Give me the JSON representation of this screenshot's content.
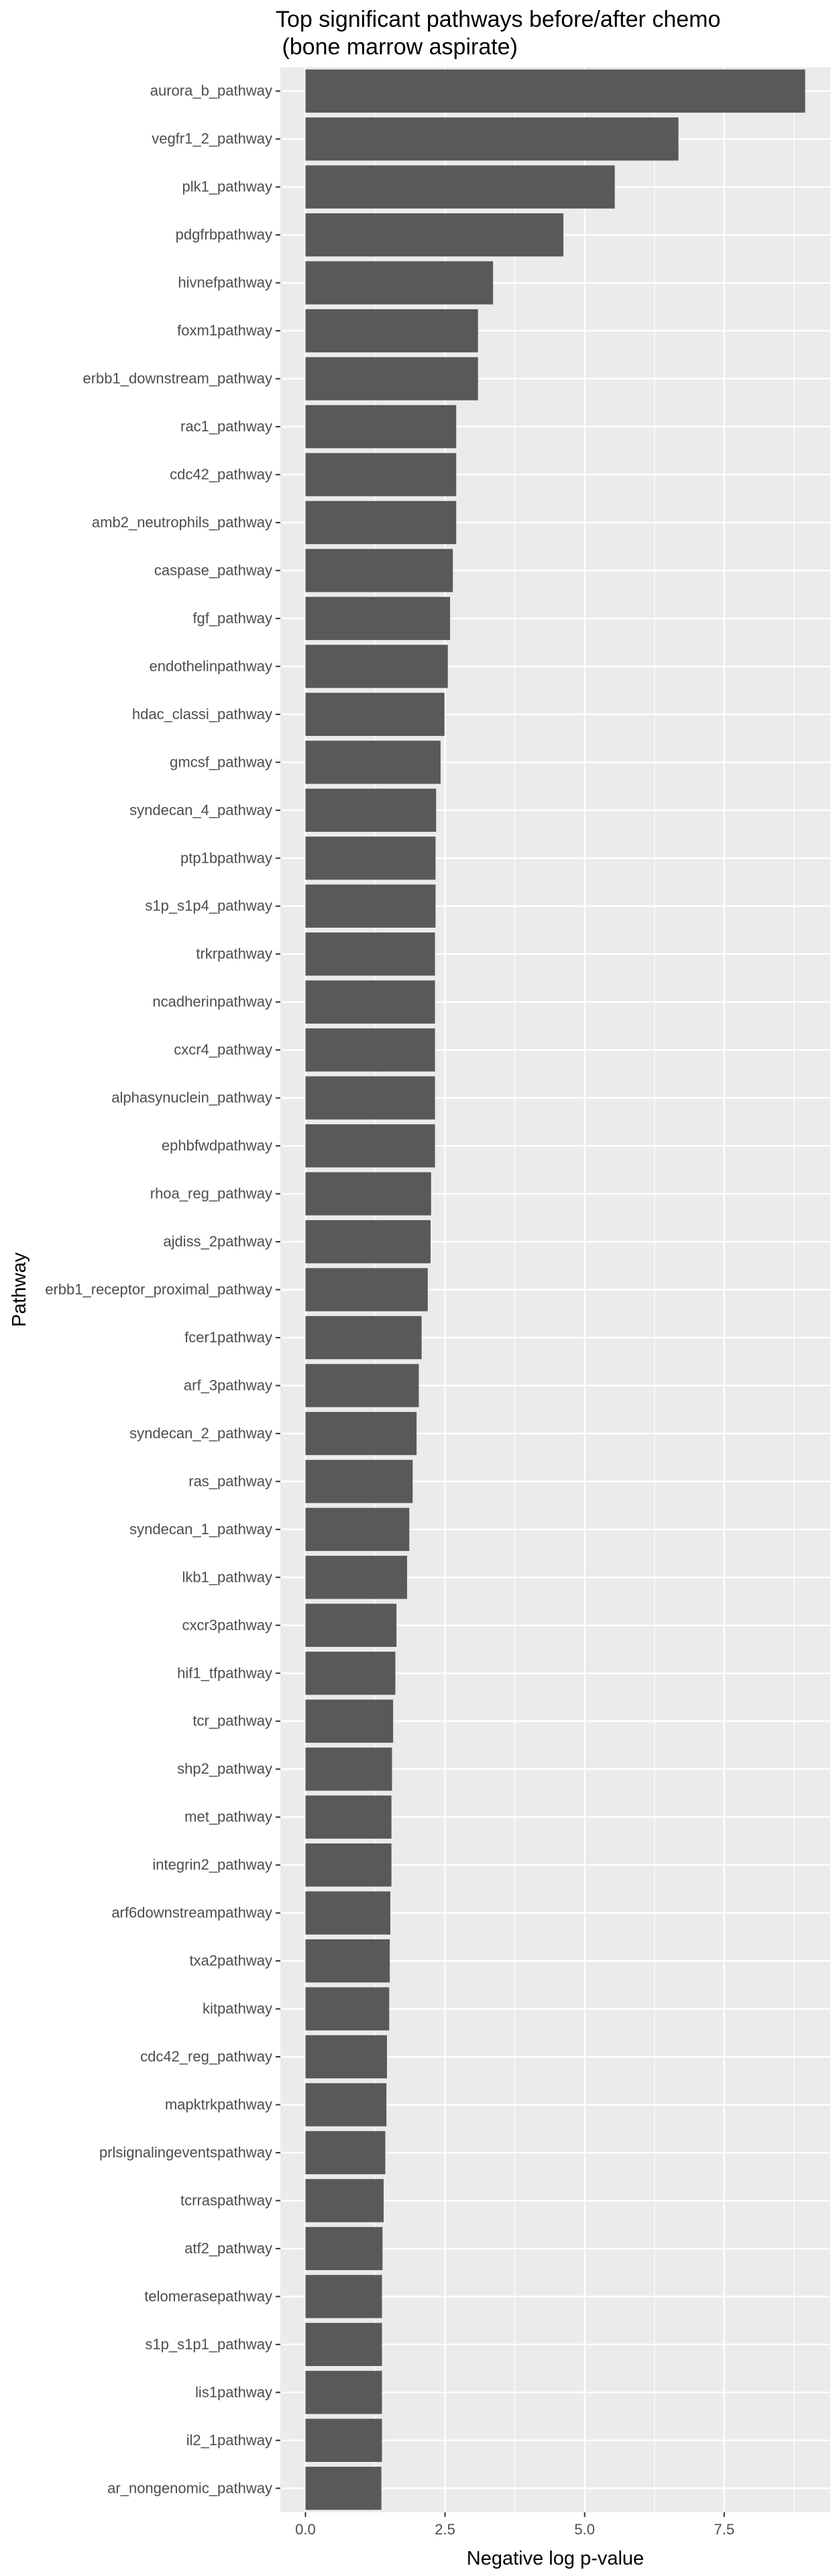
{
  "chart_data": {
    "type": "bar",
    "orientation": "horizontal",
    "title_lines": [
      "Top significant pathways before/after chemo",
      " (bone marrow aspirate)"
    ],
    "xlabel": "Negative log p-value",
    "ylabel": "Pathway",
    "xlim": [
      -0.45,
      9.4
    ],
    "xticks": [
      0,
      2.5,
      5,
      7.5
    ],
    "xtick_labels": [
      "0.0",
      "2.5",
      "5.0",
      "7.5"
    ],
    "grid": true,
    "legend": "none",
    "colors": {
      "bar": "#595959",
      "panel": "#ebebeb",
      "grid": "#ffffff",
      "tick_text": "#4d4d4d"
    },
    "categories": [
      "aurora_b_pathway",
      "vegfr1_2_pathway",
      "plk1_pathway",
      "pdgfrbpathway",
      "hivnefpathway",
      "foxm1pathway",
      "erbb1_downstream_pathway",
      "rac1_pathway",
      "cdc42_pathway",
      "amb2_neutrophils_pathway",
      "caspase_pathway",
      "fgf_pathway",
      "endothelinpathway",
      "hdac_classi_pathway",
      "gmcsf_pathway",
      "syndecan_4_pathway",
      "ptp1bpathway",
      "s1p_s1p4_pathway",
      "trkrpathway",
      "ncadherinpathway",
      "cxcr4_pathway",
      "alphasynuclein_pathway",
      "ephbfwdpathway",
      "rhoa_reg_pathway",
      "ajdiss_2pathway",
      "erbb1_receptor_proximal_pathway",
      "fcer1pathway",
      "arf_3pathway",
      "syndecan_2_pathway",
      "ras_pathway",
      "syndecan_1_pathway",
      "lkb1_pathway",
      "cxcr3pathway",
      "hif1_tfpathway",
      "tcr_pathway",
      "shp2_pathway",
      "met_pathway",
      "integrin2_pathway",
      "arf6downstreampathway",
      "txa2pathway",
      "kitpathway",
      "cdc42_reg_pathway",
      "mapktrkpathway",
      "prlsignalingeventspathway",
      "tcrraspathway",
      "atf2_pathway",
      "telomerasepathway",
      "s1p_s1p1_pathway",
      "lis1pathway",
      "il2_1pathway",
      "ar_nongenomic_pathway"
    ],
    "values": [
      8.95,
      6.68,
      5.54,
      4.62,
      3.36,
      3.09,
      3.09,
      2.7,
      2.7,
      2.7,
      2.64,
      2.59,
      2.55,
      2.49,
      2.42,
      2.34,
      2.33,
      2.33,
      2.32,
      2.32,
      2.32,
      2.32,
      2.32,
      2.25,
      2.24,
      2.19,
      2.08,
      2.03,
      1.99,
      1.92,
      1.86,
      1.82,
      1.63,
      1.61,
      1.57,
      1.55,
      1.54,
      1.54,
      1.52,
      1.51,
      1.5,
      1.46,
      1.45,
      1.43,
      1.4,
      1.38,
      1.37,
      1.37,
      1.37,
      1.37,
      1.36
    ]
  }
}
